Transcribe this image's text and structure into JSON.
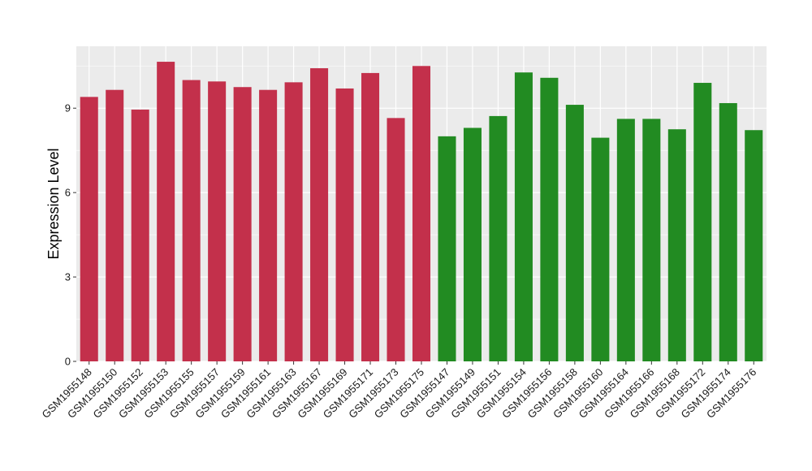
{
  "chart_data": {
    "type": "bar",
    "title": "",
    "xlabel": "",
    "ylabel": "Expression Level",
    "ylim": [
      0,
      11.2
    ],
    "yticks": [
      0,
      3,
      6,
      9
    ],
    "grid": true,
    "legend": "none",
    "colors": {
      "group1": "#c3304b",
      "group2": "#228b22",
      "panel": "#ebebeb",
      "grid": "#ffffff"
    },
    "categories": [
      "GSM1955148",
      "GSM1955150",
      "GSM1955152",
      "GSM1955153",
      "GSM1955155",
      "GSM1955157",
      "GSM1955159",
      "GSM1955161",
      "GSM1955163",
      "GSM1955167",
      "GSM1955169",
      "GSM1955171",
      "GSM1955173",
      "GSM1955175",
      "GSM1955147",
      "GSM1955149",
      "GSM1955151",
      "GSM1955154",
      "GSM1955156",
      "GSM1955158",
      "GSM1955160",
      "GSM1955164",
      "GSM1955166",
      "GSM1955168",
      "GSM1955172",
      "GSM1955174",
      "GSM1955176"
    ],
    "values": [
      9.4,
      9.65,
      8.95,
      10.65,
      10.0,
      9.95,
      9.75,
      9.65,
      9.92,
      10.42,
      9.7,
      10.25,
      8.65,
      10.5,
      8.0,
      8.3,
      8.72,
      10.27,
      10.08,
      9.12,
      7.95,
      8.62,
      8.62,
      8.25,
      9.9,
      9.18,
      8.22
    ],
    "groups": [
      "group1",
      "group1",
      "group1",
      "group1",
      "group1",
      "group1",
      "group1",
      "group1",
      "group1",
      "group1",
      "group1",
      "group1",
      "group1",
      "group1",
      "group2",
      "group2",
      "group2",
      "group2",
      "group2",
      "group2",
      "group2",
      "group2",
      "group2",
      "group2",
      "group2",
      "group2",
      "group2"
    ]
  }
}
